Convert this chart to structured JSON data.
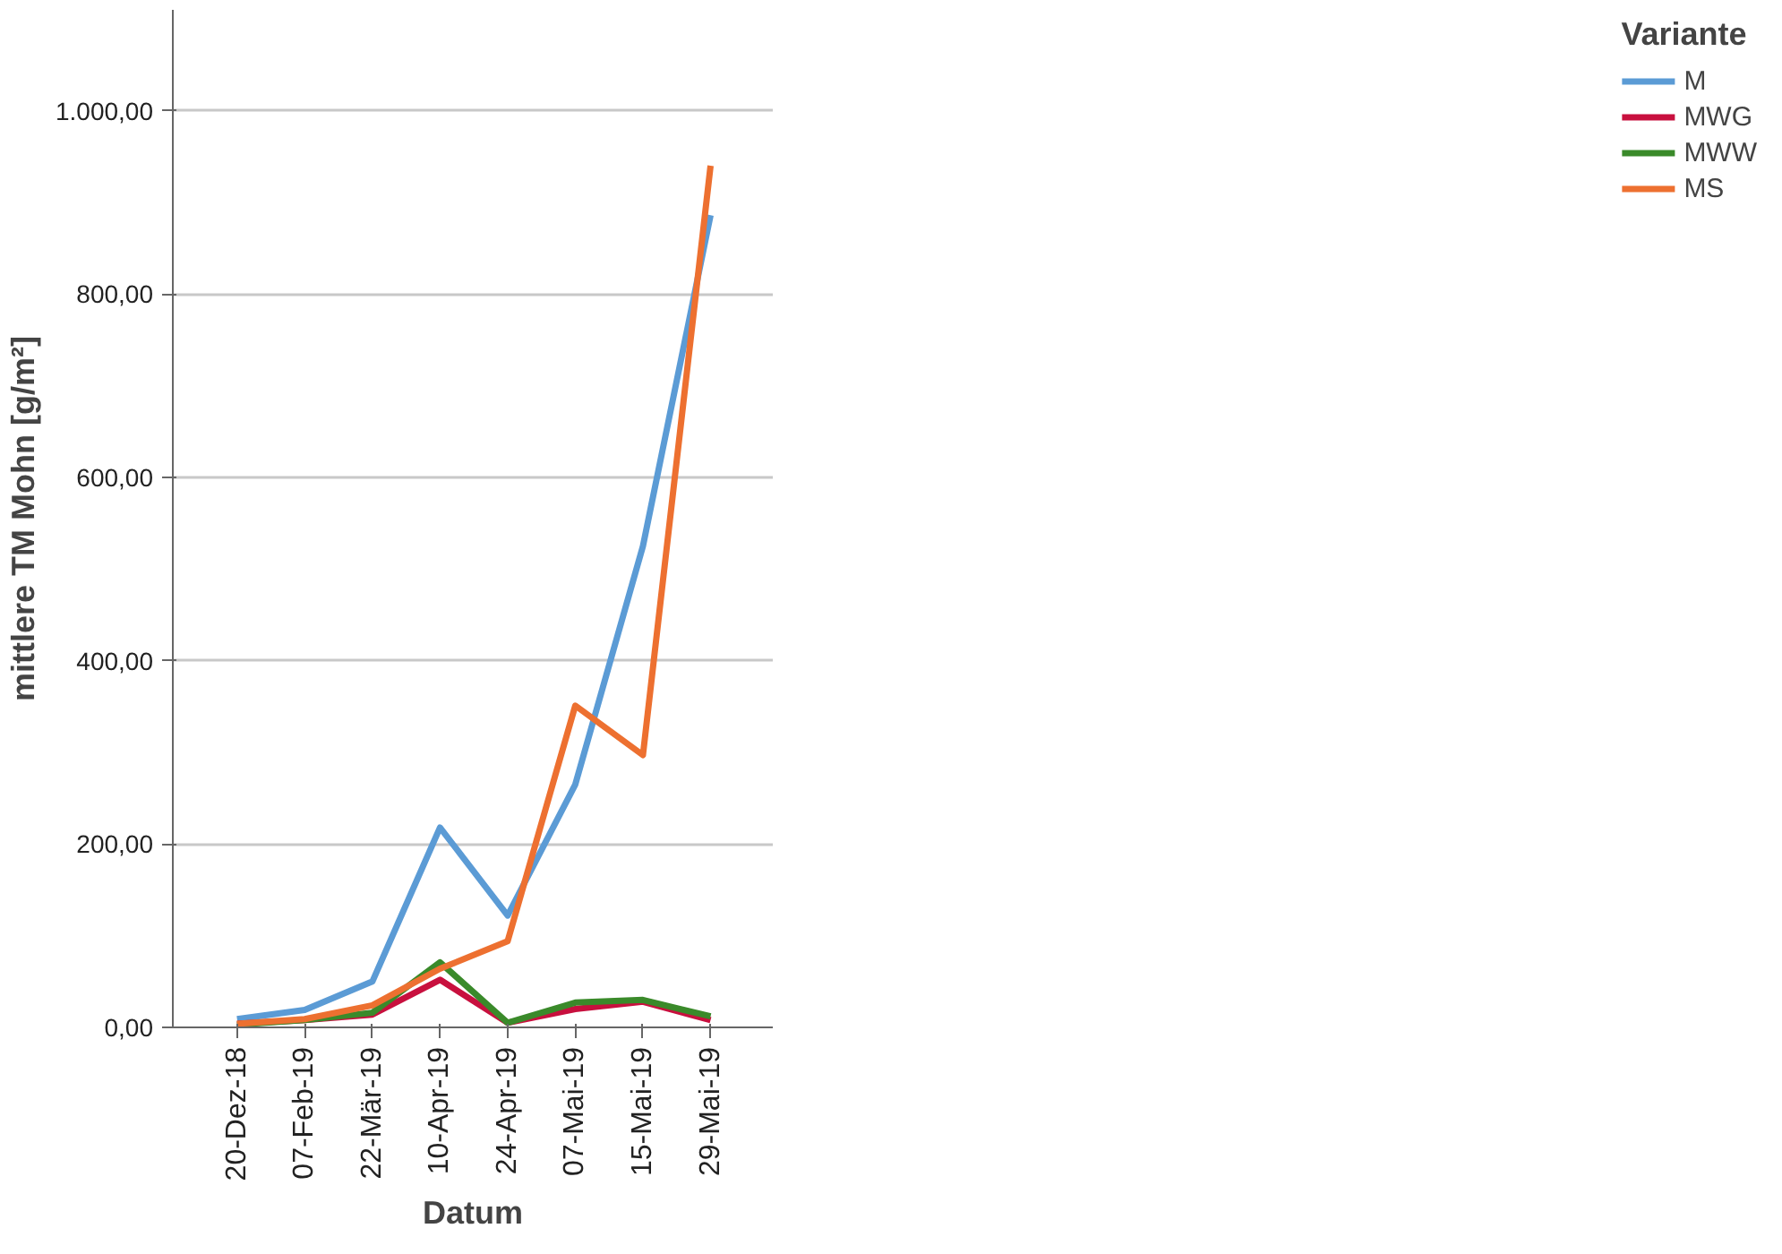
{
  "chart_data": {
    "type": "line",
    "xlabel": "Datum",
    "ylabel": "mittlere TM Mohn [g/m²]",
    "legend_title": "Variante",
    "categories": [
      "20-Dez-18",
      "07-Feb-19",
      "22-Mär-19",
      "10-Apr-19",
      "24-Apr-19",
      "07-Mai-19",
      "15-Mai-19",
      "29-Mai-19"
    ],
    "series": [
      {
        "name": "M",
        "color": "#5b9bd5",
        "values": [
          9,
          19,
          50,
          218,
          122,
          265,
          525,
          886
        ]
      },
      {
        "name": "MWG",
        "color": "#c8103e",
        "values": [
          4,
          8,
          14,
          52,
          5,
          20,
          28,
          8
        ]
      },
      {
        "name": "MWW",
        "color": "#3a8a2a",
        "values": [
          3,
          8,
          16,
          71,
          5,
          27,
          30,
          12
        ]
      },
      {
        "name": "MS",
        "color": "#ed7030",
        "values": [
          4,
          9,
          24,
          64,
          94,
          351,
          297,
          940
        ]
      }
    ],
    "ylim": [
      0,
      1110
    ],
    "yticks": [
      {
        "value": 0,
        "label": "0,00"
      },
      {
        "value": 200,
        "label": "200,00"
      },
      {
        "value": 400,
        "label": "400,00"
      },
      {
        "value": 600,
        "label": "600,00"
      },
      {
        "value": 800,
        "label": "800,00"
      },
      {
        "value": 1000,
        "label": "1.000,00"
      }
    ],
    "grid": "y",
    "legend": "right",
    "marker": "none",
    "line_style": "solid"
  }
}
